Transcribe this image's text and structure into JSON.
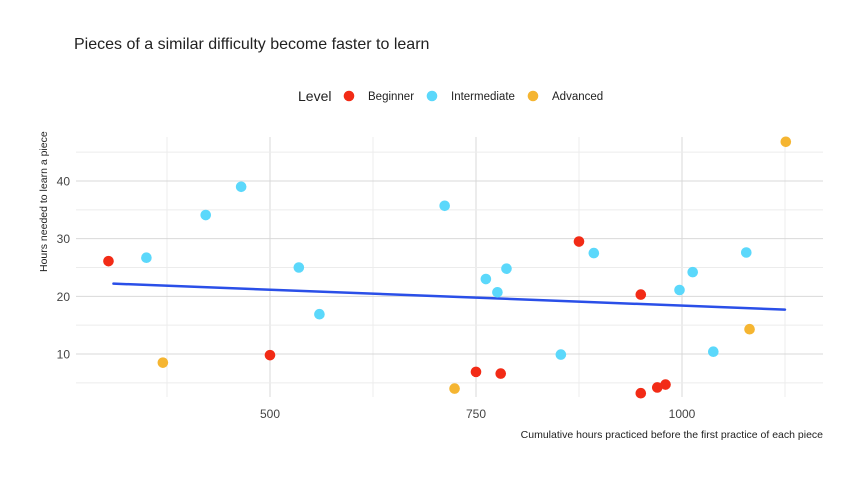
{
  "chart_data": {
    "type": "scatter",
    "title": "Pieces of a similar difficulty become faster to learn",
    "xlabel": "Cumulative hours practiced before the first practice of each piece",
    "ylabel": "Hours needed to learn a piece",
    "xlim": [
      300,
      1150
    ],
    "ylim": [
      1.5,
      48
    ],
    "x_ticks": [
      500,
      750,
      1000
    ],
    "y_ticks": [
      10,
      20,
      30,
      40
    ],
    "grid": true,
    "legend_title": "Level",
    "legend_position": "top",
    "series": [
      {
        "name": "Beginner",
        "color": "#f22b16",
        "points": [
          {
            "x": 304,
            "y": 26.1
          },
          {
            "x": 500,
            "y": 9.8
          },
          {
            "x": 750,
            "y": 6.9
          },
          {
            "x": 780,
            "y": 6.6
          },
          {
            "x": 875,
            "y": 29.5
          },
          {
            "x": 950,
            "y": 20.3
          },
          {
            "x": 950,
            "y": 3.2
          },
          {
            "x": 970,
            "y": 4.2
          },
          {
            "x": 980,
            "y": 4.7
          }
        ]
      },
      {
        "name": "Intermediate",
        "color": "#5bd8fb",
        "points": [
          {
            "x": 350,
            "y": 26.7
          },
          {
            "x": 422,
            "y": 34.1
          },
          {
            "x": 465,
            "y": 39.0
          },
          {
            "x": 535,
            "y": 25.0
          },
          {
            "x": 560,
            "y": 16.9
          },
          {
            "x": 712,
            "y": 35.7
          },
          {
            "x": 762,
            "y": 23.0
          },
          {
            "x": 776,
            "y": 20.7
          },
          {
            "x": 787,
            "y": 24.8
          },
          {
            "x": 853,
            "y": 9.9
          },
          {
            "x": 893,
            "y": 27.5
          },
          {
            "x": 997,
            "y": 21.1
          },
          {
            "x": 1013,
            "y": 24.2
          },
          {
            "x": 1038,
            "y": 10.4
          },
          {
            "x": 1078,
            "y": 27.6
          }
        ]
      },
      {
        "name": "Advanced",
        "color": "#f5b531",
        "points": [
          {
            "x": 370,
            "y": 8.5
          },
          {
            "x": 724,
            "y": 4.0
          },
          {
            "x": 1082,
            "y": 14.3
          },
          {
            "x": 1126,
            "y": 46.8
          }
        ]
      }
    ],
    "trend_line": {
      "color": "#2a4fe8",
      "x": [
        310,
        1125
      ],
      "y": [
        22.2,
        17.7
      ]
    }
  }
}
